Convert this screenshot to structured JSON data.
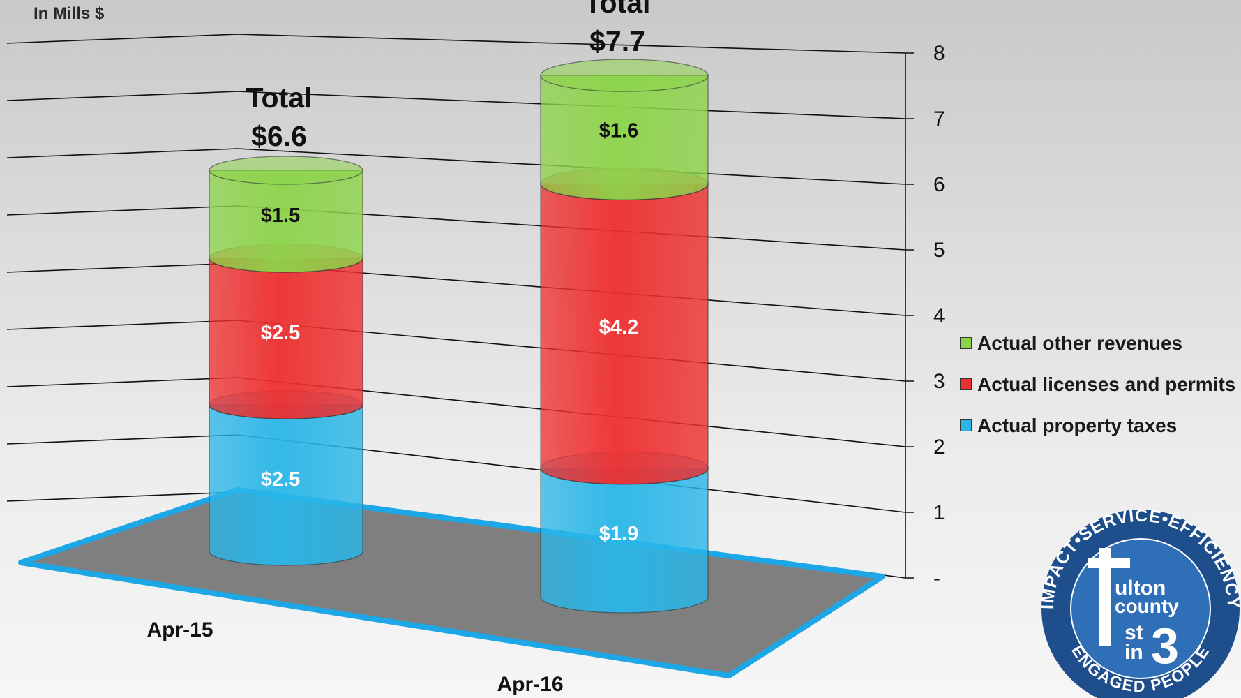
{
  "chart_data": {
    "type": "bar",
    "style": "3d-stacked-cylinder",
    "unit_label": "In Mills $",
    "categories": [
      "Apr-15",
      "Apr-16"
    ],
    "series": [
      {
        "name": "Actual property taxes",
        "values": [
          2.5,
          1.9
        ],
        "labels": [
          "$2.5",
          "$1.9"
        ],
        "color": "#29b6e8",
        "label_color": "#ffffff"
      },
      {
        "name": "Actual licenses and permits",
        "values": [
          2.5,
          4.2
        ],
        "labels": [
          "$2.5",
          "$4.2"
        ],
        "color": "#ee2f2f",
        "label_color": "#ffffff"
      },
      {
        "name": "Actual other revenues",
        "values": [
          1.5,
          1.6
        ],
        "labels": [
          "$1.5",
          "$1.6"
        ],
        "color": "#8dd44a",
        "label_color": "#111111"
      }
    ],
    "totals": [
      {
        "heading": "Total",
        "value": "$6.6"
      },
      {
        "heading": "Total",
        "value": "$7.7"
      }
    ],
    "y_ticks": [
      "-",
      "1",
      "2",
      "3",
      "4",
      "5",
      "6",
      "7",
      "8"
    ],
    "ylim": [
      0,
      8
    ],
    "grid": true,
    "legend_position": "right"
  },
  "logo": {
    "name": "Fulton County 1st in 3",
    "text_top": "IMPACT•SERVICE•EFFICIENCY",
    "text_bottom": "ENGAGED PEOPLE",
    "text_center_1": "ulton",
    "text_center_2": "county",
    "text_center_3": "st",
    "text_center_4": "in",
    "text_center_5": "3",
    "colors": {
      "ring": "#1f4e8c",
      "inner": "#2f6fb8",
      "text": "#ffffff"
    }
  }
}
